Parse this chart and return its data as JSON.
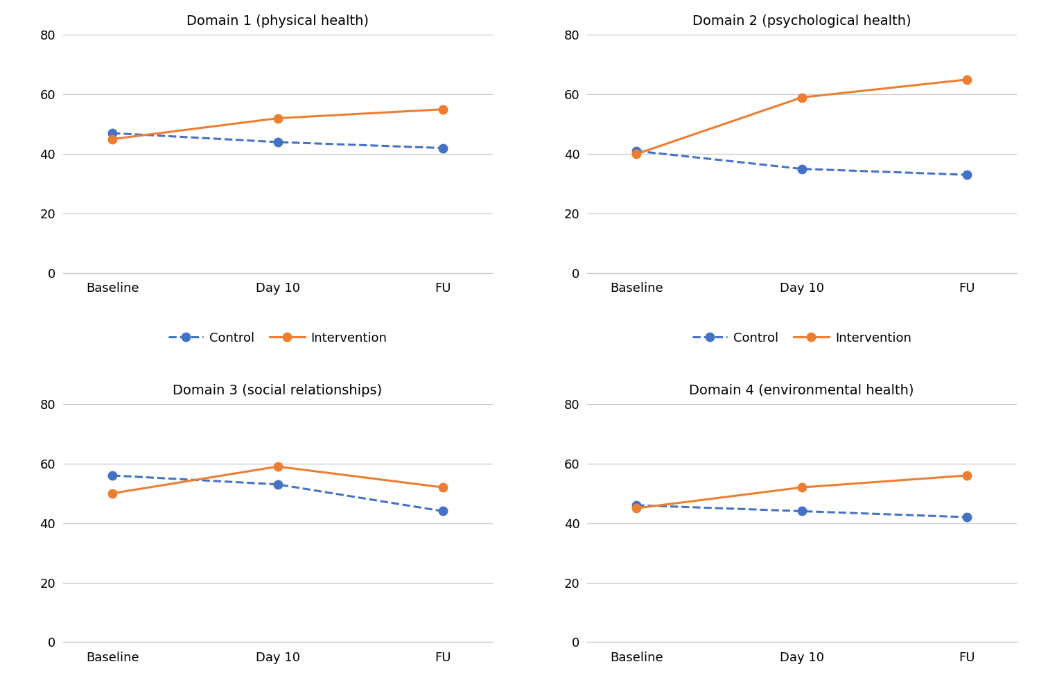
{
  "subplots": [
    {
      "title": "Domain 1 (physical health)",
      "control": [
        47,
        44,
        42
      ],
      "intervention": [
        45,
        52,
        55
      ]
    },
    {
      "title": "Domain 2 (psychological health)",
      "control": [
        41,
        35,
        33
      ],
      "intervention": [
        40,
        59,
        65
      ]
    },
    {
      "title": "Domain 3 (social relationships)",
      "control": [
        56,
        53,
        44
      ],
      "intervention": [
        50,
        59,
        52
      ]
    },
    {
      "title": "Domain 4 (environmental health)",
      "control": [
        46,
        44,
        42
      ],
      "intervention": [
        45,
        52,
        56
      ]
    }
  ],
  "x_labels": [
    "Baseline",
    "Day 10",
    "FU"
  ],
  "x_positions": [
    0,
    1,
    2
  ],
  "ylim": [
    0,
    80
  ],
  "yticks": [
    0,
    20,
    40,
    60,
    80
  ],
  "control_color": "#4472C4",
  "intervention_color": "#ED7D31",
  "background_color": "#FFFFFF",
  "grid_color": "#C8C8C8",
  "control_label": "Control",
  "intervention_label": "Intervention",
  "marker_size": 9,
  "line_width": 2.2,
  "title_fontsize": 14,
  "tick_fontsize": 13,
  "legend_fontsize": 13
}
